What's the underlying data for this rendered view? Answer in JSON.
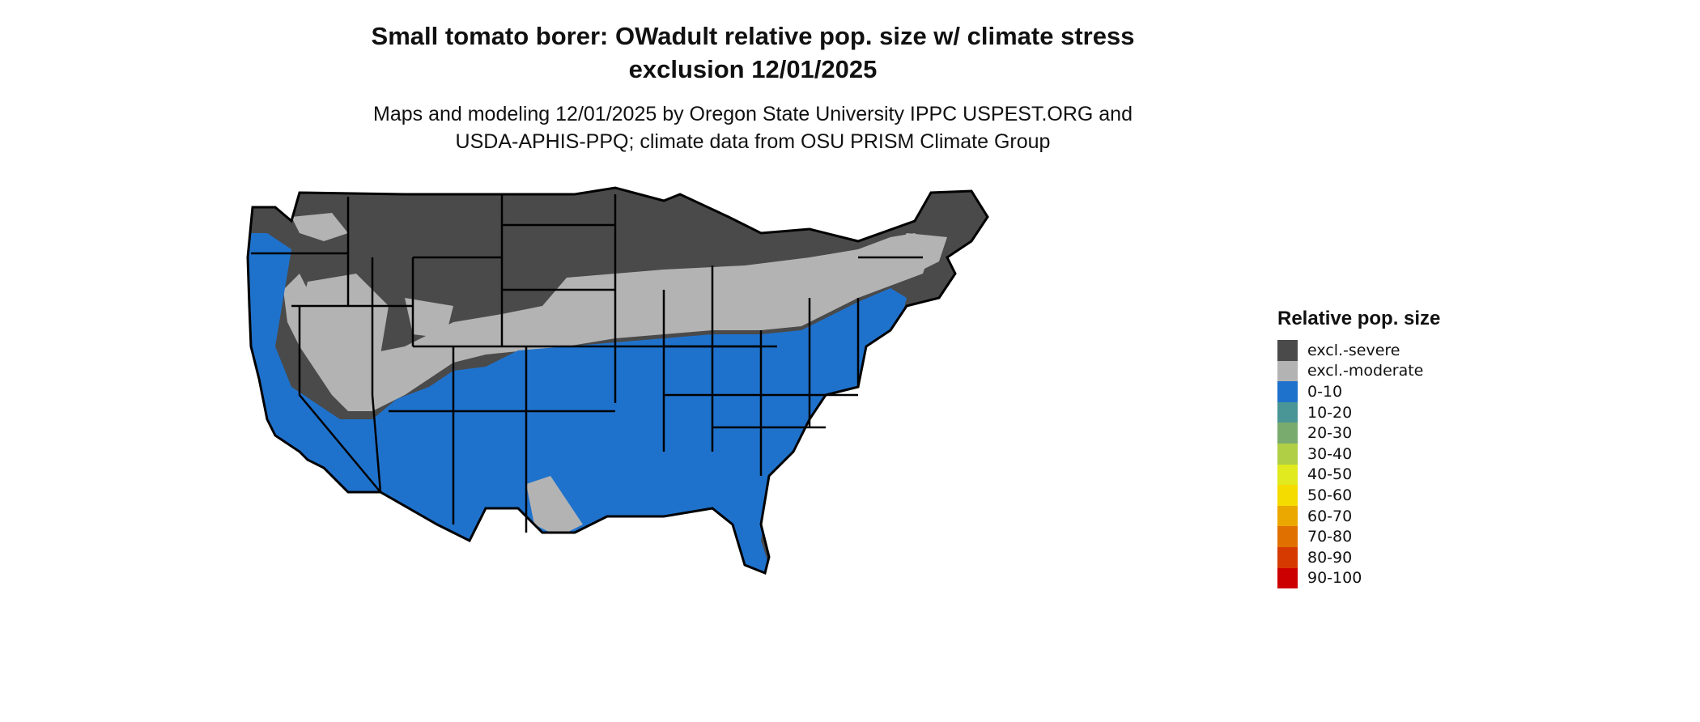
{
  "title": {
    "line1": "Small tomato borer: OWadult relative pop. size w/ climate stress",
    "line2": "exclusion 12/01/2025"
  },
  "subtitle": {
    "line1": "Maps and modeling 12/01/2025 by Oregon State University IPPC USPEST.ORG and",
    "line2": "USDA-APHIS-PPQ; climate data from OSU PRISM Climate Group"
  },
  "legend": {
    "title": "Relative pop. size",
    "items": [
      {
        "label": "excl.-severe",
        "color": "#4a4a4a"
      },
      {
        "label": "excl.-moderate",
        "color": "#b3b3b3"
      },
      {
        "label": "0-10",
        "color": "#1f72cc"
      },
      {
        "label": "10-20",
        "color": "#4a9696"
      },
      {
        "label": "20-30",
        "color": "#7aab6e"
      },
      {
        "label": "30-40",
        "color": "#b0cf45"
      },
      {
        "label": "40-50",
        "color": "#e0ea1e"
      },
      {
        "label": "50-60",
        "color": "#f5dc00"
      },
      {
        "label": "60-70",
        "color": "#eba800"
      },
      {
        "label": "70-80",
        "color": "#e07000"
      },
      {
        "label": "80-90",
        "color": "#d63a00"
      },
      {
        "label": "90-100",
        "color": "#cc0000"
      }
    ]
  },
  "map": {
    "region": "Contiguous United States",
    "colors": {
      "severe": "#4a4a4a",
      "moderate": "#b3b3b3",
      "low": "#1f72cc",
      "border": "#000000"
    }
  }
}
